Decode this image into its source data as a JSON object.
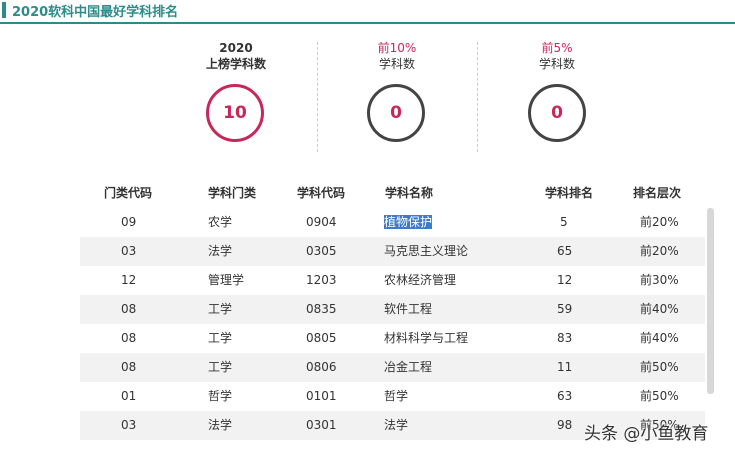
{
  "title": "2020软科中国最好学科排名",
  "stats": [
    {
      "line1": "2020",
      "line2": "上榜学科数",
      "value": "10",
      "color": "#c8275a"
    },
    {
      "line1": "前10%",
      "line2": "学科数",
      "value": "0",
      "color": "#444444"
    },
    {
      "line1": "前5%",
      "line2": "学科数",
      "value": "0",
      "color": "#444444"
    }
  ],
  "table": {
    "headers": [
      "门类代码",
      "学科门类",
      "学科代码",
      "学科名称",
      "学科排名",
      "排名层次"
    ],
    "rows": [
      {
        "cat_code": "09",
        "category": "农学",
        "code": "0904",
        "name": "植物保护",
        "rank": "5",
        "level": "前20%"
      },
      {
        "cat_code": "03",
        "category": "法学",
        "code": "0305",
        "name": "马克思主义理论",
        "rank": "65",
        "level": "前20%"
      },
      {
        "cat_code": "12",
        "category": "管理学",
        "code": "1203",
        "name": "农林经济管理",
        "rank": "12",
        "level": "前30%"
      },
      {
        "cat_code": "08",
        "category": "工学",
        "code": "0835",
        "name": "软件工程",
        "rank": "59",
        "level": "前40%"
      },
      {
        "cat_code": "08",
        "category": "工学",
        "code": "0805",
        "name": "材料科学与工程",
        "rank": "83",
        "level": "前40%"
      },
      {
        "cat_code": "08",
        "category": "工学",
        "code": "0806",
        "name": "冶金工程",
        "rank": "11",
        "level": "前50%"
      },
      {
        "cat_code": "01",
        "category": "哲学",
        "code": "0101",
        "name": "哲学",
        "rank": "63",
        "level": "前50%"
      },
      {
        "cat_code": "03",
        "category": "法学",
        "code": "0301",
        "name": "法学",
        "rank": "98",
        "level": "前50%"
      }
    ]
  },
  "watermark": "头条 @小鱼教育",
  "colors": {
    "accent": "#2c8c8a",
    "highlight": "#c8275a",
    "selection": "#3d7ac9"
  }
}
